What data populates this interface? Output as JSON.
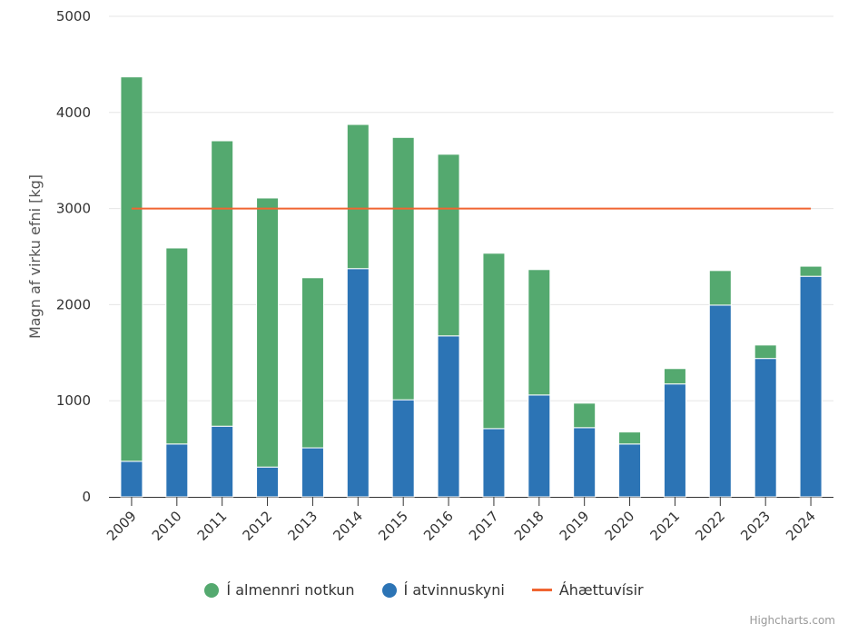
{
  "chart_data": {
    "type": "bar",
    "stacked": true,
    "categories": [
      "2009",
      "2010",
      "2011",
      "2012",
      "2013",
      "2014",
      "2015",
      "2016",
      "2017",
      "2018",
      "2019",
      "2020",
      "2021",
      "2022",
      "2023",
      "2024"
    ],
    "series": [
      {
        "name": "Í almennri notkun",
        "color": "#54a96f",
        "values": [
          4000,
          2040,
          2970,
          2800,
          1770,
          1500,
          2730,
          1890,
          1825,
          1305,
          255,
          125,
          160,
          360,
          140,
          105
        ]
      },
      {
        "name": "Í atvinnuskyni",
        "color": "#2c74b5",
        "values": [
          370,
          550,
          735,
          310,
          510,
          2375,
          1010,
          1675,
          710,
          1060,
          720,
          550,
          1175,
          1995,
          1440,
          2295
        ]
      },
      {
        "name": "Áhættuvísir",
        "type": "line",
        "color": "#f06532",
        "values": [
          3000,
          3000,
          3000,
          3000,
          3000,
          3000,
          3000,
          3000,
          3000,
          3000,
          3000,
          3000,
          3000,
          3000,
          3000,
          3000
        ]
      }
    ],
    "ylabel": "Magn af virku efni [kg]",
    "xlabel": "",
    "ylim": [
      0,
      5000
    ],
    "yticks": [
      "0",
      "1000",
      "2000",
      "3000",
      "4000",
      "5000"
    ],
    "grid": true,
    "legend_position": "bottom-center"
  },
  "credits": "Highcharts.com"
}
